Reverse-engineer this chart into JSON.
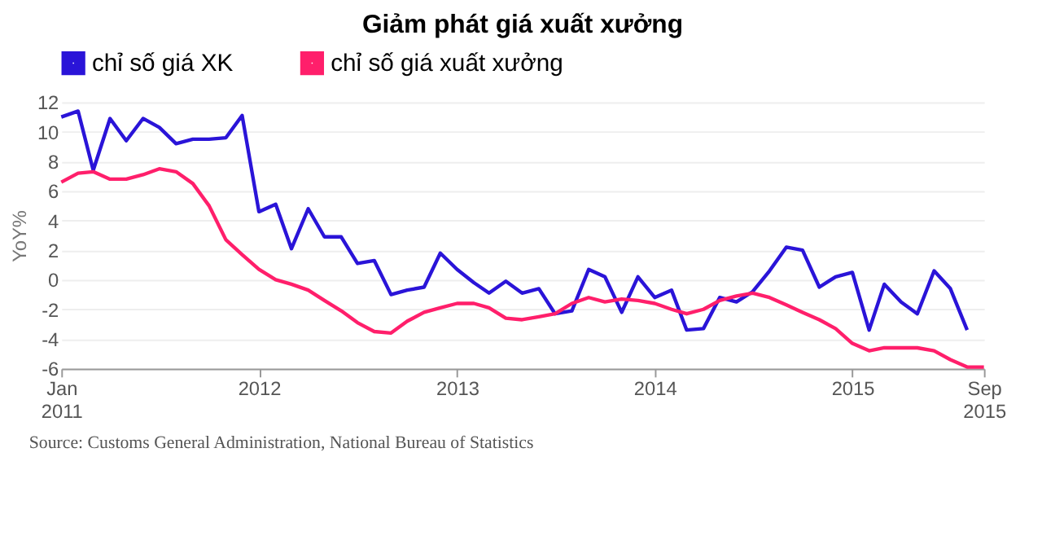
{
  "chart_data": {
    "type": "line",
    "title": "Giảm phát giá xuất xưởng",
    "ylabel": "YoY%",
    "x": [
      "2011-01",
      "2011-02",
      "2011-03",
      "2011-04",
      "2011-05",
      "2011-06",
      "2011-07",
      "2011-08",
      "2011-09",
      "2011-10",
      "2011-11",
      "2011-12",
      "2012-01",
      "2012-02",
      "2012-03",
      "2012-04",
      "2012-05",
      "2012-06",
      "2012-07",
      "2012-08",
      "2012-09",
      "2012-10",
      "2012-11",
      "2012-12",
      "2013-01",
      "2013-02",
      "2013-03",
      "2013-04",
      "2013-05",
      "2013-06",
      "2013-07",
      "2013-08",
      "2013-09",
      "2013-10",
      "2013-11",
      "2013-12",
      "2014-01",
      "2014-02",
      "2014-03",
      "2014-04",
      "2014-05",
      "2014-06",
      "2014-07",
      "2014-08",
      "2014-09",
      "2014-10",
      "2014-11",
      "2014-12",
      "2015-01",
      "2015-02",
      "2015-03",
      "2015-04",
      "2015-05",
      "2015-06",
      "2015-07",
      "2015-08",
      "2015-09"
    ],
    "series": [
      {
        "name": "chỉ số giá XK",
        "color": "#2a14d8",
        "values": [
          11.0,
          11.4,
          7.4,
          10.9,
          9.4,
          10.9,
          10.3,
          9.2,
          9.5,
          9.5,
          9.6,
          11.1,
          4.6,
          5.1,
          2.1,
          4.8,
          2.9,
          2.9,
          1.1,
          1.3,
          -1.0,
          -0.7,
          -0.5,
          1.8,
          0.7,
          -0.2,
          -0.9,
          -0.1,
          -0.9,
          -0.6,
          -2.3,
          -2.1,
          0.7,
          0.2,
          -2.2,
          0.2,
          -1.2,
          -0.7,
          -3.4,
          -3.3,
          -1.2,
          -1.5,
          -0.8,
          0.6,
          2.2,
          2.0,
          -0.5,
          0.2,
          0.5,
          -3.4,
          -0.3,
          -1.5,
          -2.3,
          0.6,
          -0.6,
          -3.4,
          null
        ]
      },
      {
        "name": "chỉ số giá xuất xưởng",
        "color": "#ff1f6b",
        "values": [
          6.6,
          7.2,
          7.3,
          6.8,
          6.8,
          7.1,
          7.5,
          7.3,
          6.5,
          5.0,
          2.7,
          1.7,
          0.7,
          0.0,
          -0.3,
          -0.7,
          -1.4,
          -2.1,
          -2.9,
          -3.5,
          -3.6,
          -2.8,
          -2.2,
          -1.9,
          -1.6,
          -1.6,
          -1.9,
          -2.6,
          -2.7,
          -2.5,
          -2.3,
          -1.6,
          -1.2,
          -1.5,
          -1.3,
          -1.4,
          -1.6,
          -2.0,
          -2.3,
          -2.0,
          -1.4,
          -1.1,
          -0.9,
          -1.2,
          -1.7,
          -2.2,
          -2.7,
          -3.3,
          -4.3,
          -4.8,
          -4.6,
          -4.6,
          -4.6,
          -4.8,
          -5.4,
          -5.9,
          -5.9
        ]
      }
    ],
    "xlim": [
      "2011-01",
      "2015-09"
    ],
    "xticks": [
      {
        "value": "2011-01",
        "label": "Jan 2011"
      },
      {
        "value": "2012-01",
        "label": "2012"
      },
      {
        "value": "2013-01",
        "label": "2013"
      },
      {
        "value": "2014-01",
        "label": "2014"
      },
      {
        "value": "2015-01",
        "label": "2015"
      },
      {
        "value": "2015-09",
        "label": "Sep 2015"
      }
    ],
    "ylim": [
      -6,
      12
    ],
    "yticks": [
      -6,
      -4,
      -2,
      0,
      2,
      4,
      6,
      8,
      10,
      12
    ],
    "grid": "y",
    "legend": "top left",
    "marker": "none",
    "line_style": "solid",
    "annotations": [
      "Source: Customs General Administration, National Bureau of Statistics"
    ]
  }
}
